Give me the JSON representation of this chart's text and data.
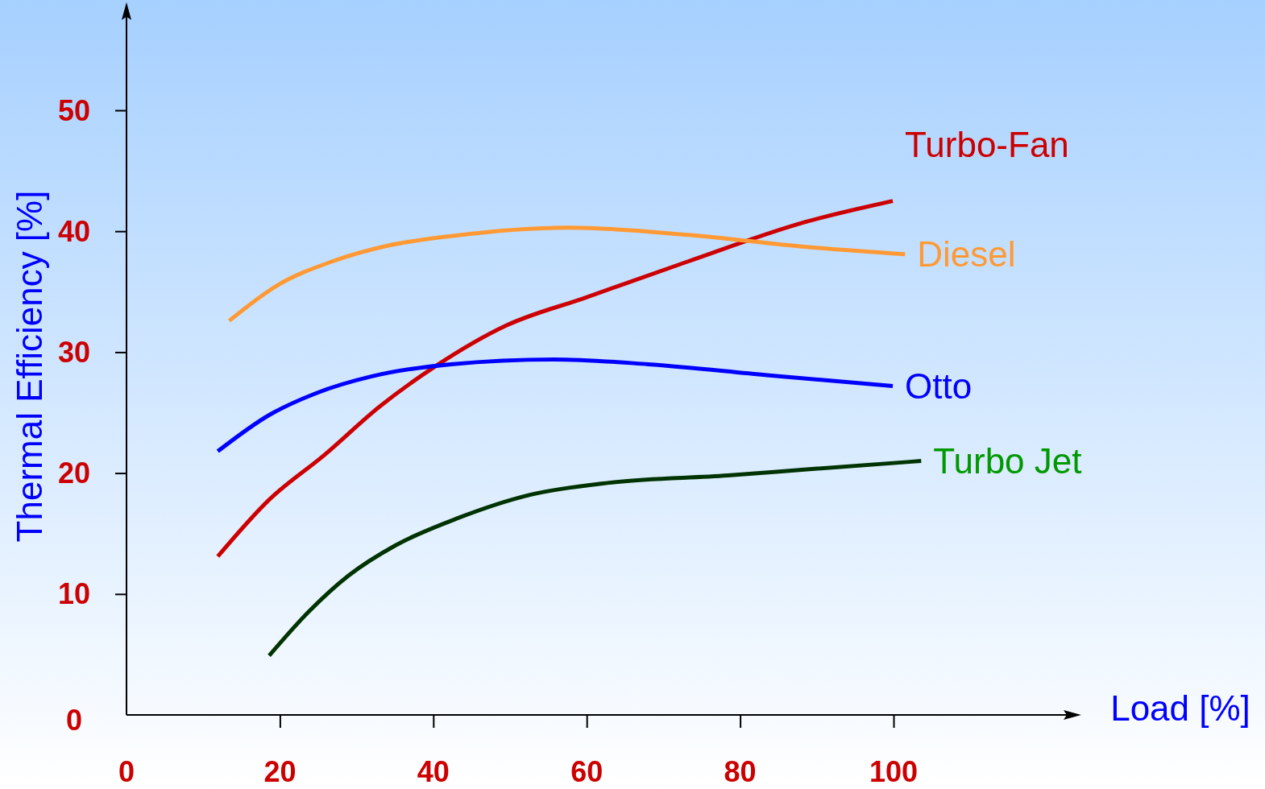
{
  "chart_data": {
    "type": "line",
    "xlabel": "Load [%]",
    "ylabel": "Thermal Efficiency [%]",
    "xlim": [
      0,
      123
    ],
    "ylim": [
      0,
      58
    ],
    "xticks": [
      0,
      20,
      40,
      60,
      80,
      100
    ],
    "yticks": [
      0,
      10,
      20,
      30,
      40,
      50
    ],
    "grid": false,
    "line_style": "solid",
    "series": [
      {
        "name": "Turbo-Fan",
        "color": "#cc0000",
        "x": [
          11.9,
          18.6,
          25.8,
          33,
          40.2,
          49.5,
          59.8,
          73.2,
          88.7,
          99.9
        ],
        "values": [
          13.1,
          17.8,
          21.5,
          25.5,
          28.8,
          32.2,
          34.5,
          37.5,
          40.8,
          42.5
        ]
      },
      {
        "name": "Diesel",
        "color": "#ff9933",
        "x": [
          13.4,
          19.6,
          26.8,
          34,
          42.3,
          57.7,
          73.2,
          88.7,
          101.5
        ],
        "values": [
          32.6,
          35.5,
          37.5,
          38.8,
          39.6,
          40.3,
          39.7,
          38.7,
          38.1
        ]
      },
      {
        "name": "Otto",
        "color": "#0000ff",
        "x": [
          11.9,
          18.6,
          24.7,
          32,
          42.3,
          55.7,
          68,
          83.5,
          99.9
        ],
        "values": [
          21.8,
          24.8,
          26.6,
          28,
          29,
          29.4,
          29,
          28.1,
          27.2
        ]
      },
      {
        "name": "Turbo Jet",
        "color": "#003300",
        "x": [
          18.6,
          23.7,
          28.9,
          35,
          43.3,
          52.6,
          62.9,
          78.4,
          88.7,
          103.6
        ],
        "values": [
          4.9,
          8.5,
          11.5,
          14,
          16.3,
          18.2,
          19.2,
          19.8,
          20.3,
          21
        ]
      }
    ]
  }
}
